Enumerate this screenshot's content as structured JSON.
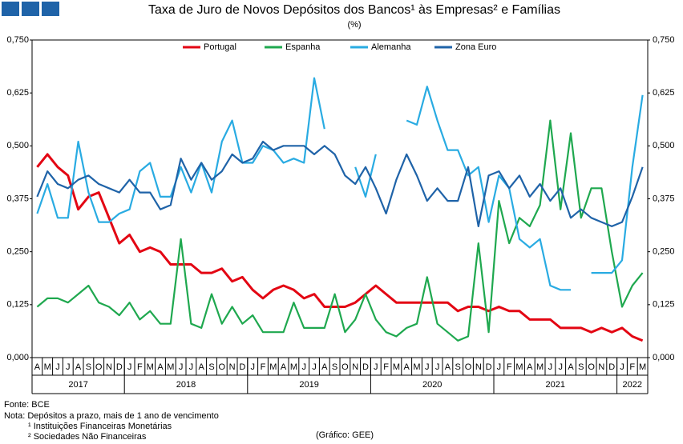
{
  "chart_data": {
    "type": "line",
    "title": "Taxa de Juro de Novos Depósitos dos Bancos¹ às Empresas² e Famílias",
    "subtitle": "(%)",
    "categories": [
      "A",
      "M",
      "J",
      "J",
      "A",
      "S",
      "O",
      "N",
      "D",
      "J",
      "F",
      "M",
      "A",
      "M",
      "J",
      "J",
      "A",
      "S",
      "O",
      "N",
      "D",
      "J",
      "F",
      "M",
      "A",
      "M",
      "J",
      "J",
      "A",
      "S",
      "O",
      "N",
      "D",
      "J",
      "F",
      "M",
      "A",
      "M",
      "J",
      "J",
      "A",
      "S",
      "O",
      "N",
      "D",
      "J",
      "F",
      "M",
      "A",
      "M",
      "J",
      "J",
      "A",
      "S",
      "O",
      "N",
      "D",
      "J",
      "F",
      "M"
    ],
    "years": [
      "2017",
      "2018",
      "2019",
      "2020",
      "2021",
      "2022"
    ],
    "ylim": [
      0,
      0.75
    ],
    "yticks": [
      {
        "value": 0,
        "label": "0,000"
      },
      {
        "value": 0.125,
        "label": "0,125"
      },
      {
        "value": 0.25,
        "label": "0,250"
      },
      {
        "value": 0.375,
        "label": "0,375"
      },
      {
        "value": 0.5,
        "label": "0,500"
      },
      {
        "value": 0.625,
        "label": "0,625"
      },
      {
        "value": 0.75,
        "label": "0,750"
      }
    ],
    "series": [
      {
        "name": "Portugal",
        "color": "#e30613",
        "values": [
          0.45,
          0.48,
          0.45,
          0.43,
          0.35,
          0.38,
          0.39,
          0.33,
          0.27,
          0.29,
          0.25,
          0.26,
          0.25,
          0.22,
          0.22,
          0.22,
          0.2,
          0.2,
          0.21,
          0.18,
          0.19,
          0.16,
          0.14,
          0.16,
          0.17,
          0.16,
          0.14,
          0.15,
          0.12,
          0.12,
          0.12,
          0.13,
          0.15,
          0.17,
          0.15,
          0.13,
          0.13,
          0.13,
          0.13,
          0.13,
          0.13,
          0.11,
          0.12,
          0.12,
          0.11,
          0.12,
          0.11,
          0.11,
          0.09,
          0.09,
          0.09,
          0.07,
          0.07,
          0.07,
          0.06,
          0.07,
          0.06,
          0.07,
          0.05,
          0.04
        ]
      },
      {
        "name": "Espanha",
        "color": "#1fa84f",
        "values": [
          0.12,
          0.14,
          0.14,
          0.13,
          0.15,
          0.17,
          0.13,
          0.12,
          0.1,
          0.13,
          0.09,
          0.11,
          0.08,
          0.08,
          0.28,
          0.08,
          0.07,
          0.15,
          0.08,
          0.12,
          0.08,
          0.1,
          0.06,
          0.06,
          0.06,
          0.13,
          0.07,
          0.07,
          0.07,
          0.15,
          0.06,
          0.09,
          0.15,
          0.09,
          0.06,
          0.05,
          0.07,
          0.08,
          0.19,
          0.08,
          0.06,
          0.04,
          0.05,
          0.27,
          0.06,
          0.37,
          0.27,
          0.33,
          0.31,
          0.36,
          0.56,
          0.35,
          0.53,
          0.33,
          0.4,
          0.4,
          0.25,
          0.12,
          0.17,
          0.2
        ]
      },
      {
        "name": "Alemanha",
        "color": "#29abe2",
        "values": [
          0.34,
          0.41,
          0.33,
          0.33,
          0.51,
          0.39,
          0.32,
          0.32,
          0.34,
          0.35,
          0.44,
          0.46,
          0.38,
          0.38,
          0.45,
          0.39,
          0.46,
          0.39,
          0.51,
          0.56,
          0.46,
          0.46,
          0.5,
          0.49,
          0.46,
          0.47,
          0.46,
          0.66,
          0.54,
          null,
          null,
          0.45,
          0.38,
          0.48,
          null,
          null,
          0.56,
          0.55,
          0.64,
          0.56,
          0.49,
          0.49,
          0.43,
          0.45,
          0.32,
          0.43,
          0.4,
          0.28,
          0.26,
          0.28,
          0.17,
          0.16,
          0.16,
          null,
          0.2,
          0.2,
          0.2,
          0.23,
          0.45,
          0.62
        ]
      },
      {
        "name": "Zona Euro",
        "color": "#1f63a8",
        "values": [
          0.38,
          0.44,
          0.41,
          0.4,
          0.42,
          0.43,
          0.41,
          0.4,
          0.39,
          0.42,
          0.39,
          0.39,
          0.35,
          0.36,
          0.47,
          0.42,
          0.46,
          0.42,
          0.44,
          0.48,
          0.46,
          0.47,
          0.51,
          0.49,
          0.5,
          0.5,
          0.5,
          0.48,
          0.5,
          0.48,
          0.43,
          0.41,
          0.45,
          0.4,
          0.34,
          0.42,
          0.48,
          0.43,
          0.37,
          0.4,
          0.37,
          0.37,
          0.45,
          0.31,
          0.43,
          0.44,
          0.4,
          0.43,
          0.38,
          0.41,
          0.37,
          0.4,
          0.33,
          0.35,
          0.33,
          0.32,
          0.31,
          0.32,
          0.38,
          0.45
        ]
      }
    ],
    "notes": [
      "Fonte: BCE",
      "Nota: Depósitos a prazo, mais de 1 ano de vencimento",
      "¹ Instituições Financeiras Monetárias",
      "² Sociedades Não Financeiras"
    ],
    "credit": "(Gráfico: GEE)"
  }
}
